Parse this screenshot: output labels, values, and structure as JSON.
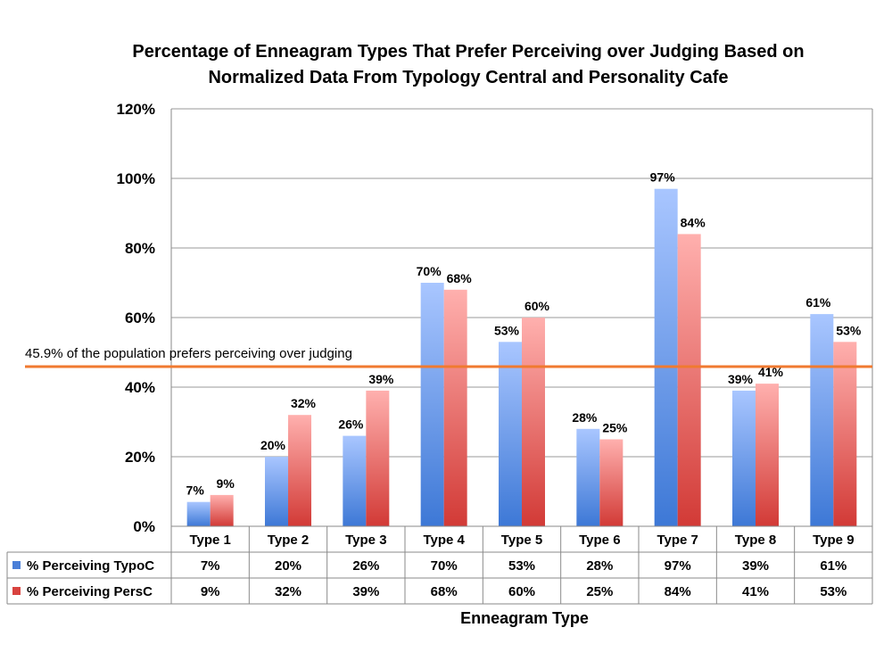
{
  "chart_data": {
    "type": "bar",
    "title_lines": [
      "Percentage of Enneagram Types That Prefer Perceiving over Judging Based on",
      "Normalized Data From Typology Central and Personality Cafe"
    ],
    "xlabel": "Enneagram Type",
    "ylabel": "",
    "categories": [
      "Type  1",
      "Type 2",
      "Type 3",
      "Type 4",
      "Type 5",
      "Type 6",
      "Type 7",
      "Type 8",
      "Type 9"
    ],
    "series": [
      {
        "name": "% Perceiving TypoC",
        "values": [
          7,
          20,
          26,
          70,
          53,
          28,
          97,
          39,
          61
        ],
        "labels": [
          "7%",
          "20%",
          "26%",
          "70%",
          "53%",
          "28%",
          "97%",
          "39%",
          "61%"
        ],
        "color_top": "#a9c6ff",
        "color_bottom": "#3d78d6",
        "legend_color": "#4a7fd8"
      },
      {
        "name": "% Perceiving PersC",
        "values": [
          9,
          32,
          39,
          68,
          60,
          25,
          84,
          41,
          53
        ],
        "labels": [
          "9%",
          "32%",
          "39%",
          "68%",
          "60%",
          "25%",
          "84%",
          "41%",
          "53%"
        ],
        "color_top": "#ffb0ae",
        "color_bottom": "#d23a36",
        "legend_color": "#d9433f"
      }
    ],
    "ylim": [
      0,
      120
    ],
    "yticks": [
      0,
      20,
      40,
      60,
      80,
      100,
      120
    ],
    "ytick_labels": [
      "0%",
      "20%",
      "40%",
      "60%",
      "80%",
      "100%",
      "120%"
    ],
    "grid": true,
    "reference_line": {
      "value": 45.9,
      "label": "45.9% of the population prefers perceiving over judging",
      "color": "#f07a30"
    },
    "data_table": true
  }
}
